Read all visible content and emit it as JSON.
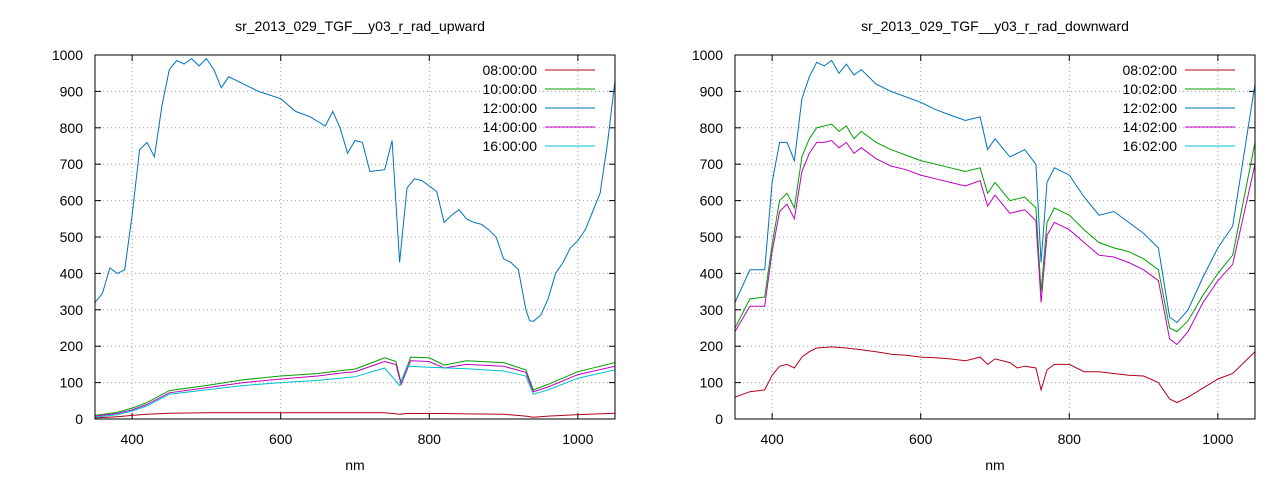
{
  "chart_data": [
    {
      "type": "line",
      "title": "sr_2013_029_TGF__y03_r_rad_upward",
      "xlabel": "nm",
      "ylabel": "",
      "xlim": [
        350,
        1050
      ],
      "ylim": [
        0,
        1000
      ],
      "xticks": [
        400,
        600,
        800,
        1000
      ],
      "yticks": [
        0,
        100,
        200,
        300,
        400,
        500,
        600,
        700,
        800,
        900,
        1000
      ],
      "grid": true,
      "legend_position": "top-right",
      "series": [
        {
          "name": "08:00:00",
          "color": "#b3001b",
          "x": [
            350,
            380,
            400,
            420,
            450,
            500,
            550,
            600,
            650,
            700,
            740,
            760,
            770,
            800,
            820,
            850,
            900,
            930,
            940,
            960,
            1000,
            1050
          ],
          "y": [
            3,
            6,
            10,
            13,
            16,
            17,
            17,
            17,
            17,
            17,
            17,
            13,
            15,
            15,
            15,
            14,
            13,
            8,
            5,
            8,
            12,
            16
          ]
        },
        {
          "name": "10:00:00",
          "color": "#00a000",
          "x": [
            350,
            380,
            400,
            420,
            450,
            500,
            550,
            600,
            650,
            680,
            700,
            740,
            755,
            762,
            775,
            800,
            820,
            850,
            900,
            930,
            940,
            960,
            1000,
            1050
          ],
          "y": [
            10,
            18,
            30,
            45,
            78,
            92,
            108,
            118,
            125,
            133,
            137,
            168,
            158,
            100,
            170,
            168,
            148,
            160,
            155,
            135,
            80,
            95,
            130,
            155
          ]
        },
        {
          "name": "12:00:00",
          "color": "#0072bd",
          "x": [
            350,
            360,
            370,
            380,
            390,
            400,
            410,
            420,
            430,
            440,
            450,
            460,
            470,
            480,
            490,
            500,
            510,
            520,
            530,
            550,
            570,
            600,
            620,
            640,
            660,
            670,
            680,
            690,
            700,
            710,
            720,
            740,
            750,
            760,
            770,
            780,
            790,
            800,
            810,
            820,
            830,
            840,
            850,
            860,
            870,
            880,
            890,
            900,
            910,
            920,
            930,
            935,
            940,
            950,
            960,
            970,
            980,
            990,
            1000,
            1010,
            1020,
            1030,
            1040,
            1050
          ],
          "y": [
            320,
            345,
            415,
            400,
            410,
            560,
            740,
            760,
            720,
            860,
            960,
            985,
            975,
            990,
            970,
            990,
            960,
            910,
            940,
            920,
            900,
            880,
            845,
            830,
            805,
            845,
            800,
            730,
            765,
            760,
            680,
            685,
            765,
            430,
            635,
            660,
            655,
            640,
            625,
            540,
            560,
            575,
            550,
            540,
            535,
            520,
            500,
            440,
            430,
            410,
            300,
            270,
            268,
            285,
            330,
            400,
            430,
            470,
            490,
            520,
            570,
            620,
            760,
            930
          ]
        },
        {
          "name": "14:00:00",
          "color": "#c000c0",
          "x": [
            350,
            380,
            400,
            420,
            450,
            500,
            550,
            600,
            650,
            680,
            700,
            740,
            755,
            762,
            775,
            800,
            820,
            850,
            900,
            930,
            940,
            960,
            1000,
            1050
          ],
          "y": [
            8,
            15,
            25,
            40,
            72,
            86,
            100,
            110,
            118,
            126,
            130,
            158,
            150,
            95,
            160,
            158,
            140,
            150,
            145,
            128,
            75,
            88,
            122,
            145
          ]
        },
        {
          "name": "16:00:00",
          "color": "#00c0d0",
          "x": [
            350,
            380,
            400,
            420,
            450,
            500,
            550,
            600,
            650,
            700,
            740,
            760,
            770,
            800,
            850,
            900,
            930,
            940,
            960,
            1000,
            1050
          ],
          "y": [
            5,
            12,
            22,
            36,
            68,
            80,
            92,
            100,
            106,
            116,
            140,
            92,
            145,
            142,
            138,
            132,
            118,
            68,
            80,
            112,
            135
          ]
        }
      ]
    },
    {
      "type": "line",
      "title": "sr_2013_029_TGF__y03_r_rad_downward",
      "xlabel": "nm",
      "ylabel": "",
      "xlim": [
        350,
        1050
      ],
      "ylim": [
        0,
        1000
      ],
      "xticks": [
        400,
        600,
        800,
        1000
      ],
      "yticks": [
        0,
        100,
        200,
        300,
        400,
        500,
        600,
        700,
        800,
        900,
        1000
      ],
      "grid": true,
      "legend_position": "top-right",
      "series": [
        {
          "name": "08:02:00",
          "color": "#b3001b",
          "x": [
            350,
            370,
            390,
            400,
            410,
            420,
            430,
            440,
            450,
            460,
            480,
            500,
            520,
            540,
            560,
            580,
            600,
            620,
            640,
            660,
            680,
            690,
            700,
            720,
            730,
            740,
            755,
            762,
            770,
            780,
            800,
            820,
            840,
            860,
            880,
            900,
            920,
            935,
            945,
            960,
            980,
            1000,
            1020,
            1050
          ],
          "y": [
            60,
            75,
            80,
            120,
            145,
            150,
            140,
            170,
            185,
            195,
            198,
            195,
            190,
            185,
            178,
            175,
            170,
            168,
            165,
            160,
            170,
            150,
            165,
            155,
            140,
            145,
            140,
            80,
            135,
            150,
            150,
            130,
            130,
            125,
            120,
            118,
            100,
            55,
            45,
            60,
            85,
            110,
            125,
            185
          ]
        },
        {
          "name": "10:02:00",
          "color": "#00a000",
          "x": [
            350,
            370,
            390,
            400,
            410,
            420,
            430,
            440,
            450,
            460,
            470,
            480,
            490,
            500,
            510,
            520,
            540,
            560,
            580,
            600,
            620,
            640,
            660,
            680,
            690,
            700,
            720,
            740,
            755,
            762,
            770,
            780,
            800,
            820,
            840,
            860,
            880,
            900,
            920,
            935,
            945,
            960,
            980,
            1000,
            1020,
            1050
          ],
          "y": [
            250,
            330,
            335,
            480,
            600,
            620,
            580,
            720,
            770,
            800,
            805,
            810,
            790,
            805,
            770,
            790,
            760,
            740,
            725,
            710,
            700,
            690,
            680,
            690,
            620,
            650,
            600,
            610,
            580,
            350,
            540,
            580,
            560,
            520,
            485,
            470,
            460,
            440,
            410,
            250,
            240,
            270,
            340,
            400,
            450,
            760
          ]
        },
        {
          "name": "12:02:00",
          "color": "#0072bd",
          "x": [
            350,
            370,
            390,
            400,
            410,
            420,
            430,
            440,
            450,
            460,
            470,
            480,
            490,
            500,
            510,
            520,
            540,
            560,
            580,
            600,
            620,
            640,
            660,
            680,
            690,
            700,
            720,
            740,
            755,
            762,
            770,
            780,
            800,
            820,
            840,
            860,
            880,
            900,
            920,
            935,
            945,
            960,
            980,
            1000,
            1020,
            1050
          ],
          "y": [
            320,
            410,
            410,
            650,
            760,
            760,
            710,
            880,
            940,
            980,
            970,
            985,
            950,
            975,
            945,
            960,
            920,
            900,
            885,
            870,
            850,
            835,
            820,
            830,
            740,
            770,
            720,
            740,
            700,
            430,
            650,
            690,
            670,
            610,
            560,
            570,
            540,
            510,
            470,
            280,
            265,
            300,
            390,
            470,
            530,
            920
          ]
        },
        {
          "name": "14:02:00",
          "color": "#c000c0",
          "x": [
            350,
            370,
            390,
            400,
            410,
            420,
            430,
            440,
            450,
            460,
            470,
            480,
            490,
            500,
            510,
            520,
            540,
            560,
            580,
            600,
            620,
            640,
            660,
            680,
            690,
            700,
            720,
            740,
            755,
            762,
            770,
            780,
            800,
            820,
            840,
            860,
            880,
            900,
            920,
            935,
            945,
            960,
            980,
            1000,
            1020,
            1050
          ],
          "y": [
            240,
            310,
            310,
            460,
            570,
            590,
            550,
            680,
            730,
            760,
            760,
            765,
            745,
            760,
            730,
            745,
            715,
            695,
            685,
            670,
            660,
            650,
            640,
            655,
            585,
            615,
            565,
            575,
            545,
            320,
            505,
            540,
            520,
            485,
            450,
            445,
            430,
            410,
            380,
            220,
            205,
            240,
            320,
            380,
            425,
            700
          ]
        },
        {
          "name": "16:02:00",
          "color": "#00c0d0",
          "x": [],
          "y": []
        }
      ]
    }
  ]
}
